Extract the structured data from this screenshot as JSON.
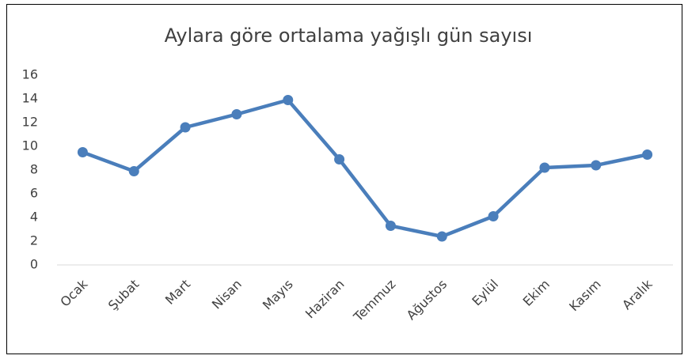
{
  "chart_data": {
    "type": "line",
    "title": "Aylara göre ortalama yağışlı gün sayısı",
    "categories": [
      "Ocak",
      "Şubat",
      "Mart",
      "Nisan",
      "Mayıs",
      "Haziran",
      "Temmuz",
      "Ağustos",
      "Eylül",
      "Ekim",
      "Kasım",
      "Aralık"
    ],
    "series": [
      {
        "name": "Yağışlı gün",
        "color": "#4a7ebb",
        "values": [
          9.5,
          7.9,
          11.6,
          12.7,
          13.9,
          8.9,
          3.3,
          2.4,
          4.1,
          8.2,
          8.4,
          9.3
        ]
      }
    ],
    "ylim": [
      0,
      16
    ],
    "yticks": [
      0,
      2,
      4,
      6,
      8,
      10,
      12,
      14,
      16
    ],
    "grid": false,
    "legend": false
  }
}
